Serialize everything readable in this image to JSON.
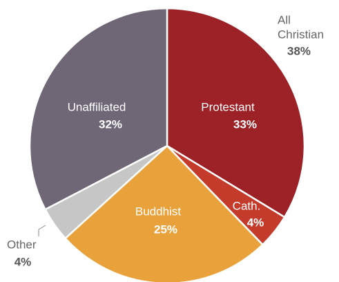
{
  "chart_data": {
    "type": "pie",
    "categories": [
      "Protestant",
      "Cath.",
      "Buddhist",
      "Other",
      "Unaffiliated"
    ],
    "values": [
      33,
      4,
      25,
      4,
      32
    ],
    "value_labels": [
      "33%",
      "4%",
      "25%",
      "4%",
      "32%"
    ],
    "colors": [
      "#9c2227",
      "#c43a2b",
      "#e9a23b",
      "#c6c6c6",
      "#6f6676"
    ],
    "annotation": {
      "lines": [
        "All",
        "Christian"
      ],
      "value_label": "38%"
    }
  }
}
